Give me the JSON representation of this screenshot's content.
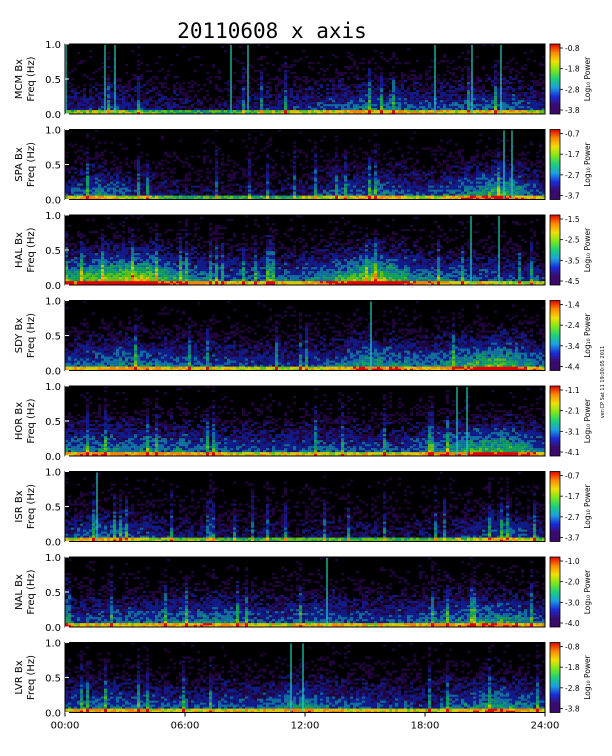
{
  "chart_data": {
    "type": "heatmap",
    "title": "20110608 x axis",
    "x_tick_labels": [
      "00:00",
      "06:00",
      "12:00",
      "18:00",
      "24:00"
    ],
    "xlim_hours": [
      0,
      24
    ],
    "ylim": [
      0,
      1.0
    ],
    "y_tick_labels": [
      "0.0",
      "0.5",
      "1.0"
    ],
    "ylabel_unit": "Freq (Hz)",
    "colorbar_label": "Log₁₀ Power",
    "side_note": "ver:CP Sat 11 19:00:05 2011",
    "colormap": [
      "#000000",
      "#3a0a6e",
      "#1a2bd8",
      "#1aa0e0",
      "#1ad07a",
      "#7be81a",
      "#f0e000",
      "#ff8a00",
      "#e00000"
    ],
    "panels": [
      {
        "station": "MCM Bx",
        "colorbar_ticks": [
          "-0.8",
          "-1.8",
          "-2.8",
          "-3.8"
        ],
        "vertical_lines": [
          0.05,
          2.0,
          2.5,
          8.3,
          9.15,
          18.5,
          20.35,
          21.8
        ],
        "activity": [
          [
            0,
            0.25
          ],
          [
            2,
            0.35
          ],
          [
            4,
            0.3
          ],
          [
            7,
            0.15
          ],
          [
            12,
            0.35
          ],
          [
            15,
            0.5
          ],
          [
            17,
            0.45
          ],
          [
            20,
            0.4
          ],
          [
            22.2,
            0.5
          ],
          [
            24,
            0.3
          ]
        ]
      },
      {
        "station": "SPA Bx",
        "colorbar_ticks": [
          "-0.7",
          "-1.7",
          "-2.7",
          "-3.7"
        ],
        "vertical_lines": [
          21.95,
          22.35
        ],
        "activity": [
          [
            0,
            0.3
          ],
          [
            1.5,
            0.55
          ],
          [
            3.5,
            0.35
          ],
          [
            6,
            0.2
          ],
          [
            10,
            0.15
          ],
          [
            13,
            0.35
          ],
          [
            16,
            0.5
          ],
          [
            18,
            0.35
          ],
          [
            21.9,
            0.75
          ],
          [
            24,
            0.35
          ]
        ]
      },
      {
        "station": "HAL Bx",
        "colorbar_ticks": [
          "-1.5",
          "-2.5",
          "-3.5",
          "-4.5"
        ],
        "vertical_lines": [
          20.3,
          21.7
        ],
        "activity": [
          [
            0,
            0.6
          ],
          [
            1.5,
            0.85
          ],
          [
            4,
            1.0
          ],
          [
            5,
            0.7
          ],
          [
            8,
            0.45
          ],
          [
            12,
            0.5
          ],
          [
            15.5,
            0.95
          ],
          [
            17.5,
            0.6
          ],
          [
            20,
            0.45
          ],
          [
            24,
            0.35
          ]
        ]
      },
      {
        "station": "SDY Bx",
        "colorbar_ticks": [
          "-1.4",
          "-2.4",
          "-3.4",
          "-4.4"
        ],
        "vertical_lines": [
          15.3
        ],
        "activity": [
          [
            0,
            0.45
          ],
          [
            3,
            0.55
          ],
          [
            6,
            0.45
          ],
          [
            10,
            0.35
          ],
          [
            13,
            0.4
          ],
          [
            15,
            0.65
          ],
          [
            18,
            0.5
          ],
          [
            21.8,
            0.8
          ],
          [
            24,
            0.45
          ]
        ]
      },
      {
        "station": "HOR Bx",
        "colorbar_ticks": [
          "-1.1",
          "-2.1",
          "-3.1",
          "-4.1"
        ],
        "vertical_lines": [
          19.6,
          20.1
        ],
        "activity": [
          [
            0,
            0.5
          ],
          [
            2,
            0.55
          ],
          [
            6,
            0.5
          ],
          [
            10,
            0.4
          ],
          [
            13,
            0.45
          ],
          [
            17,
            0.4
          ],
          [
            19.8,
            0.7
          ],
          [
            22,
            0.75
          ],
          [
            24,
            0.5
          ]
        ]
      },
      {
        "station": "ISR Bx",
        "colorbar_ticks": [
          "-0.7",
          "-1.7",
          "-2.7",
          "-3.7"
        ],
        "vertical_lines": [
          1.6
        ],
        "activity": [
          [
            0,
            0.35
          ],
          [
            1.6,
            0.5
          ],
          [
            6,
            0.25
          ],
          [
            10,
            0.2
          ],
          [
            14,
            0.25
          ],
          [
            18,
            0.2
          ],
          [
            22,
            0.45
          ],
          [
            24,
            0.3
          ]
        ]
      },
      {
        "station": "NAL Bx",
        "colorbar_ticks": [
          "-1.0",
          "-2.0",
          "-3.0",
          "-4.0"
        ],
        "vertical_lines": [
          13.1
        ],
        "activity": [
          [
            0,
            0.4
          ],
          [
            3,
            0.45
          ],
          [
            7.5,
            0.55
          ],
          [
            10,
            0.4
          ],
          [
            13,
            0.5
          ],
          [
            16,
            0.4
          ],
          [
            22,
            0.65
          ],
          [
            24,
            0.4
          ]
        ]
      },
      {
        "station": "LVR Bx",
        "colorbar_ticks": [
          "-0.8",
          "-1.8",
          "-2.8",
          "-3.8"
        ],
        "vertical_lines": [
          11.3,
          11.9
        ],
        "activity": [
          [
            0,
            0.45
          ],
          [
            2,
            0.5
          ],
          [
            6,
            0.4
          ],
          [
            10,
            0.45
          ],
          [
            11.5,
            0.6
          ],
          [
            14,
            0.45
          ],
          [
            18,
            0.35
          ],
          [
            22,
            0.65
          ],
          [
            24,
            0.4
          ]
        ]
      }
    ]
  }
}
